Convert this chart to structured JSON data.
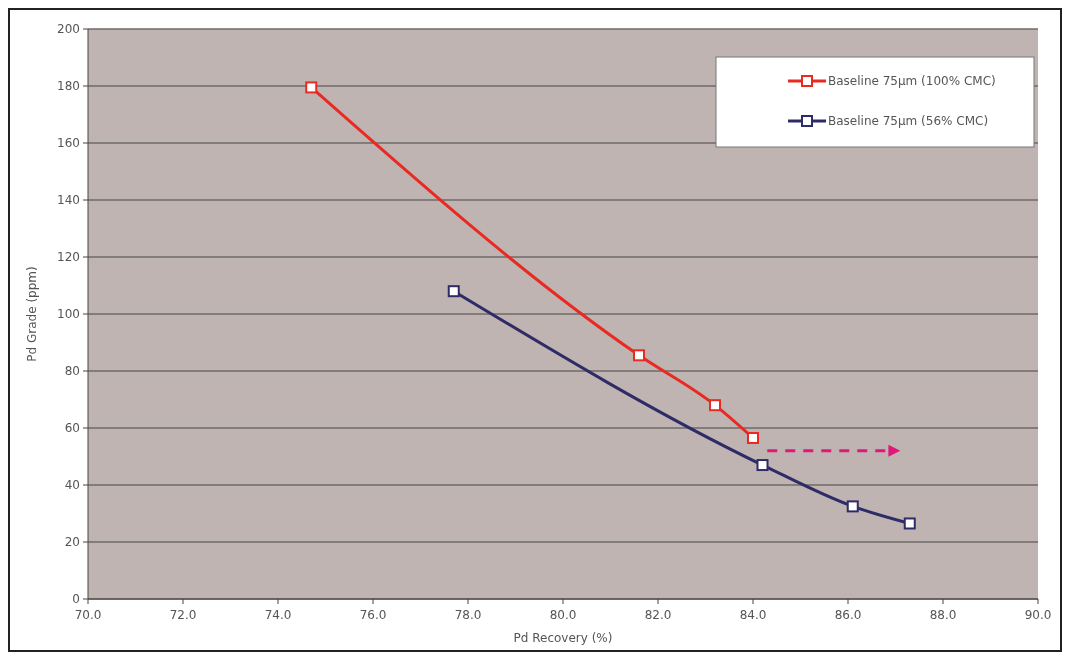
{
  "chart_data": {
    "type": "line",
    "xlabel": "Pd Recovery (%)",
    "ylabel": "Pd Grade (ppm)",
    "xlim": [
      70,
      90
    ],
    "xticks": [
      {
        "value": 70,
        "label": "70.0"
      },
      {
        "value": 72,
        "label": "72.0"
      },
      {
        "value": 74,
        "label": "74.0"
      },
      {
        "value": 76,
        "label": "76.0"
      },
      {
        "value": 78,
        "label": "78.0"
      },
      {
        "value": 80,
        "label": "80.0"
      },
      {
        "value": 82,
        "label": "82.0"
      },
      {
        "value": 84,
        "label": "84.0"
      },
      {
        "value": 86,
        "label": "86.0"
      },
      {
        "value": 88,
        "label": "88.0"
      },
      {
        "value": 90,
        "label": "90.0"
      }
    ],
    "ylim": [
      0,
      200
    ],
    "yticks": [
      0,
      20,
      40,
      60,
      80,
      100,
      120,
      140,
      160,
      180,
      200
    ],
    "grid": "y",
    "legend": "top right",
    "marker": "square",
    "line_style": "solid",
    "series": [
      {
        "name": "Baseline 75µm (100% CMC)",
        "color": "#e82a22",
        "x": [
          74.7,
          81.6,
          83.2,
          84.0
        ],
        "values": [
          179.5,
          85.5,
          68,
          56.5
        ]
      },
      {
        "name": "Baseline 75µm (56% CMC)",
        "color": "#2e2c66",
        "x": [
          77.7,
          84.2,
          86.1,
          87.3
        ],
        "values": [
          108,
          47,
          32.5,
          26.5
        ]
      }
    ]
  }
}
